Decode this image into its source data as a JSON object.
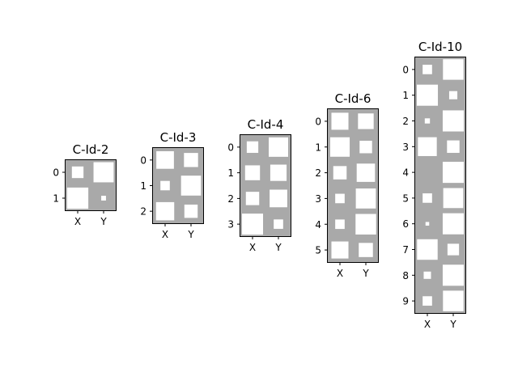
{
  "chart_data": {
    "type": "heatmap",
    "colors": {
      "background": "#a9a9a9",
      "square": "#ffffff",
      "frame": "#000000"
    },
    "panels": [
      {
        "title": "C-Id-2",
        "columns": [
          "X",
          "Y"
        ],
        "rows": [
          "0",
          "1"
        ],
        "values": [
          [
            0.3,
            0.9
          ],
          [
            1.0,
            0.05
          ]
        ]
      },
      {
        "title": "C-Id-3",
        "columns": [
          "X",
          "Y"
        ],
        "rows": [
          "0",
          "1",
          "2"
        ],
        "values": [
          [
            0.7,
            0.45
          ],
          [
            0.2,
            0.9
          ],
          [
            0.75,
            0.4
          ]
        ]
      },
      {
        "title": "C-Id-4",
        "columns": [
          "X",
          "Y"
        ],
        "rows": [
          "0",
          "1",
          "2",
          "3"
        ],
        "values": [
          [
            0.3,
            0.85
          ],
          [
            0.5,
            0.6
          ],
          [
            0.4,
            0.7
          ],
          [
            1.0,
            0.2
          ]
        ]
      },
      {
        "title": "C-Id-6",
        "columns": [
          "X",
          "Y"
        ],
        "rows": [
          "0",
          "1",
          "2",
          "3",
          "4",
          "5"
        ],
        "values": [
          [
            0.65,
            0.55
          ],
          [
            0.85,
            0.35
          ],
          [
            0.4,
            0.75
          ],
          [
            0.2,
            0.9
          ],
          [
            0.2,
            0.95
          ],
          [
            0.65,
            0.45
          ]
        ]
      },
      {
        "title": "C-Id-10",
        "columns": [
          "X",
          "Y"
        ],
        "rows": [
          "0",
          "1",
          "2",
          "3",
          "4",
          "5",
          "6",
          "7",
          "8",
          "9"
        ],
        "values": [
          [
            0.2,
            0.95
          ],
          [
            1.0,
            0.15
          ],
          [
            0.06,
            1.0
          ],
          [
            0.8,
            0.35
          ],
          [
            0.0,
            1.0
          ],
          [
            0.2,
            0.9
          ],
          [
            0.03,
            1.0
          ],
          [
            0.95,
            0.3
          ],
          [
            0.12,
            1.0
          ],
          [
            0.2,
            0.95
          ]
        ]
      }
    ]
  }
}
